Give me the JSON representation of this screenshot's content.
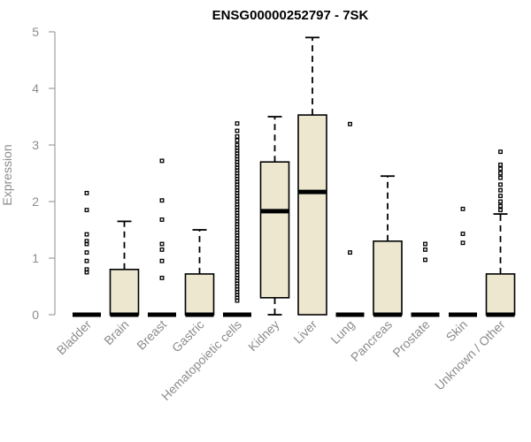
{
  "chart_data": {
    "type": "boxplot",
    "title": "ENSG00000252797 - 7SK",
    "xlabel": "",
    "ylabel": "Expression",
    "ylim": [
      0,
      5
    ],
    "yticks": [
      0,
      1,
      2,
      3,
      4,
      5
    ],
    "box_fill": "#ede7cf",
    "axis_color": "#8c8c8c",
    "categories": [
      "Bladder",
      "Brain",
      "Breast",
      "Gastric",
      "Hematopoietic cells",
      "Kidney",
      "Liver",
      "Lung",
      "Pancreas",
      "Prostate",
      "Skin",
      "Unknown / Other"
    ],
    "boxes": [
      {
        "category": "Bladder",
        "min": 0,
        "q1": 0,
        "median": 0,
        "q3": 0,
        "max": 0,
        "outliers": [
          0.75,
          0.8,
          0.95,
          1.1,
          1.25,
          1.3,
          1.42,
          1.85,
          2.15
        ]
      },
      {
        "category": "Brain",
        "min": 0,
        "q1": 0,
        "median": 0,
        "q3": 0.8,
        "max": 1.65,
        "outliers": []
      },
      {
        "category": "Breast",
        "min": 0,
        "q1": 0,
        "median": 0,
        "q3": 0,
        "max": 0,
        "outliers": [
          0.65,
          0.95,
          1.15,
          1.25,
          1.68,
          2.02,
          2.72
        ]
      },
      {
        "category": "Gastric",
        "min": 0,
        "q1": 0,
        "median": 0,
        "q3": 0.72,
        "max": 1.5,
        "outliers": []
      },
      {
        "category": "Hematopoietic cells",
        "min": 0,
        "q1": 0,
        "median": 0,
        "q3": 0,
        "max": 0,
        "outliers": [
          0.25,
          0.3,
          0.35,
          0.4,
          0.45,
          0.5,
          0.55,
          0.6,
          0.65,
          0.7,
          0.75,
          0.8,
          0.85,
          0.9,
          0.95,
          1.0,
          1.05,
          1.1,
          1.15,
          1.2,
          1.25,
          1.3,
          1.35,
          1.4,
          1.45,
          1.5,
          1.55,
          1.6,
          1.65,
          1.7,
          1.75,
          1.8,
          1.85,
          1.9,
          1.95,
          2.0,
          2.05,
          2.1,
          2.15,
          2.2,
          2.25,
          2.3,
          2.35,
          2.4,
          2.45,
          2.5,
          2.55,
          2.6,
          2.65,
          2.7,
          2.75,
          2.8,
          2.85,
          2.9,
          2.95,
          3.0,
          3.08,
          3.15,
          3.25,
          3.38
        ]
      },
      {
        "category": "Kidney",
        "min": 0,
        "q1": 0.3,
        "median": 1.83,
        "q3": 2.7,
        "max": 3.5,
        "outliers": []
      },
      {
        "category": "Liver",
        "min": 0,
        "q1": 0,
        "median": 2.17,
        "q3": 3.53,
        "max": 4.9,
        "outliers": []
      },
      {
        "category": "Lung",
        "min": 0,
        "q1": 0,
        "median": 0,
        "q3": 0,
        "max": 0,
        "outliers": [
          1.1,
          3.37
        ]
      },
      {
        "category": "Pancreas",
        "min": 0,
        "q1": 0,
        "median": 0,
        "q3": 1.3,
        "max": 2.45,
        "outliers": []
      },
      {
        "category": "Prostate",
        "min": 0,
        "q1": 0,
        "median": 0,
        "q3": 0,
        "max": 0,
        "outliers": [
          0.97,
          1.15,
          1.25
        ]
      },
      {
        "category": "Skin",
        "min": 0,
        "q1": 0,
        "median": 0,
        "q3": 0,
        "max": 0,
        "outliers": [
          1.27,
          1.43,
          1.87
        ]
      },
      {
        "category": "Unknown / Other",
        "min": 0,
        "q1": 0,
        "median": 0,
        "q3": 0.72,
        "max": 1.78,
        "outliers": [
          1.85,
          1.92,
          2.0,
          2.1,
          2.2,
          2.3,
          2.42,
          2.5,
          2.58,
          2.65,
          2.88
        ]
      }
    ]
  }
}
